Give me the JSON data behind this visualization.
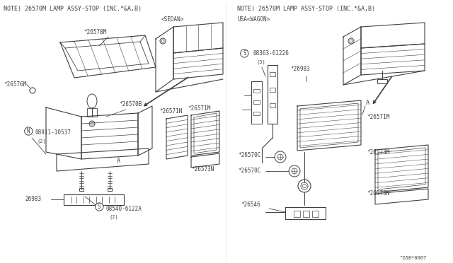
{
  "background_color": "#ffffff",
  "line_color": "#404040",
  "text_color": "#404040",
  "fig_width": 6.4,
  "fig_height": 3.72,
  "dpi": 100,
  "left_note": "NOTE) 26570M LAMP ASSY-STOP (INC.*&A,B)",
  "right_note": "NOTE) 26570M LAMP ASSY-STOP (INC.*&A,B)",
  "left_variant": "<SEDAN>",
  "right_variant": "USA<WAGON>",
  "footer": "^268*0007"
}
